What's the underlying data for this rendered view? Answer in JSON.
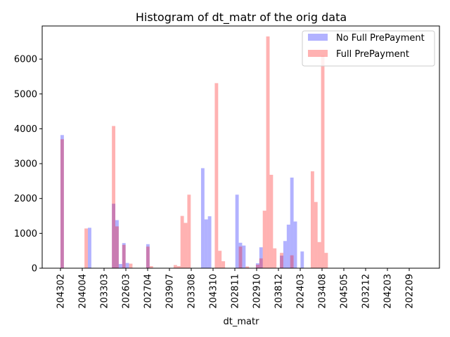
{
  "chart_data": {
    "type": "bar",
    "title": "Histogram of dt_matr of the orig data",
    "xlabel": "dt_matr",
    "ylabel": "",
    "ylim": [
      0,
      6950
    ],
    "y_ticks": [
      0,
      1000,
      2000,
      3000,
      4000,
      5000,
      6000
    ],
    "x_tick_labels": [
      "204302",
      "204004",
      "203303",
      "202603",
      "202704",
      "203907",
      "203308",
      "204310",
      "202811",
      "202910",
      "203812",
      "202403",
      "203408",
      "204505",
      "203212",
      "204203",
      "202209"
    ],
    "bin_count": 105,
    "colors": {
      "no_full": "#0000ff",
      "full": "#ff0000",
      "opacity": 0.3
    },
    "legend_position": "top-right",
    "series": [
      {
        "name": "No Full PrePayment",
        "values": [
          3820,
          0,
          0,
          0,
          0,
          0,
          0,
          0,
          1160,
          0,
          0,
          0,
          0,
          0,
          0,
          1850,
          1380,
          120,
          720,
          150,
          0,
          0,
          0,
          0,
          0,
          690,
          0,
          0,
          0,
          0,
          0,
          0,
          0,
          0,
          0,
          0,
          0,
          0,
          0,
          0,
          0,
          2870,
          1400,
          1490,
          0,
          0,
          0,
          0,
          0,
          0,
          0,
          2110,
          730,
          650,
          0,
          0,
          0,
          140,
          600,
          0,
          0,
          0,
          0,
          0,
          360,
          780,
          1250,
          2600,
          1340,
          0,
          480,
          0,
          0,
          0,
          0,
          0,
          0,
          0,
          0,
          0,
          0,
          0,
          0,
          0,
          0,
          0,
          0,
          0,
          0,
          0,
          0,
          0,
          0,
          0,
          0,
          0,
          0,
          0,
          0,
          0,
          0,
          0,
          0,
          0,
          0
        ]
      },
      {
        "name": "Full PrePayment",
        "values": [
          3700,
          0,
          0,
          0,
          0,
          0,
          0,
          1140,
          0,
          0,
          0,
          0,
          0,
          0,
          0,
          4080,
          1200,
          0,
          670,
          0,
          130,
          0,
          0,
          0,
          0,
          620,
          60,
          0,
          0,
          0,
          0,
          0,
          0,
          90,
          60,
          1500,
          1300,
          2110,
          0,
          0,
          0,
          0,
          0,
          0,
          0,
          5310,
          500,
          200,
          0,
          0,
          0,
          0,
          620,
          0,
          50,
          0,
          0,
          100,
          280,
          1650,
          6650,
          2680,
          570,
          0,
          440,
          0,
          0,
          370,
          0,
          0,
          0,
          0,
          0,
          2780,
          1900,
          750,
          6100,
          440,
          0,
          0,
          0,
          0,
          0,
          0,
          0,
          0,
          0,
          0,
          0,
          0,
          0,
          0,
          0,
          0,
          0,
          0,
          0,
          0,
          0,
          0,
          0,
          0,
          0,
          0,
          0
        ]
      }
    ]
  },
  "legend": {
    "items": [
      {
        "label": "No Full PrePayment",
        "color": "#0000ff"
      },
      {
        "label": "Full PrePayment",
        "color": "#ff0000"
      }
    ]
  }
}
